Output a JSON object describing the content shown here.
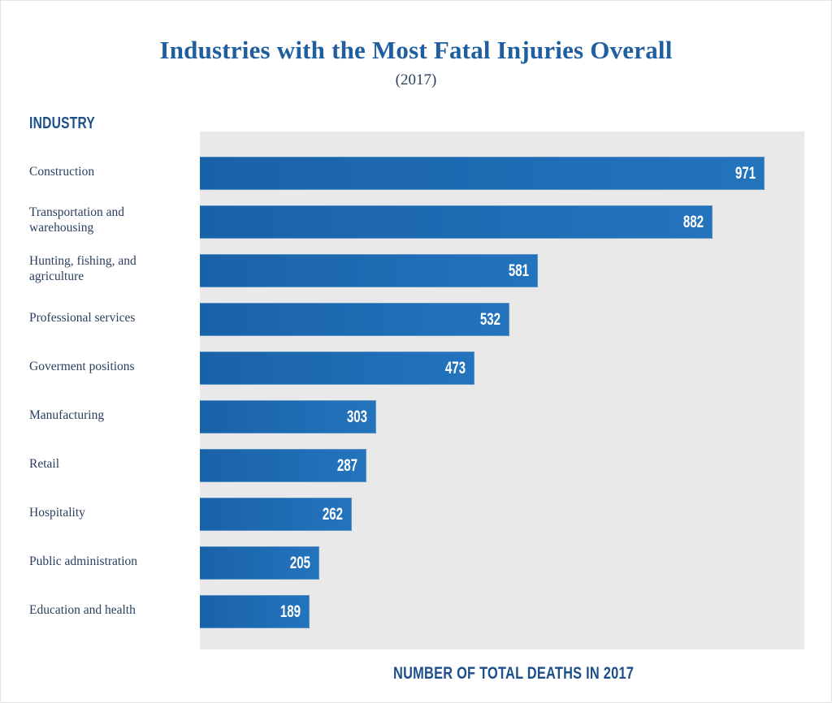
{
  "chart_data": {
    "type": "bar",
    "orientation": "horizontal",
    "title": "Industries with the Most Fatal Injuries Overall",
    "subtitle": "(2017)",
    "ylabel": "INDUSTRY",
    "xlabel": "NUMBER OF TOTAL DEATHS IN 2017",
    "xlim": [
      0,
      1040
    ],
    "grid": false,
    "categories": [
      "Construction",
      "Transportation and warehousing",
      "Hunting, fishing, and agriculture",
      "Professional services",
      "Goverment positions",
      "Manufacturing",
      "Retail",
      "Hospitality",
      "Public administration",
      "Education and health"
    ],
    "category_lines": [
      [
        "Construction"
      ],
      [
        "Transportation and",
        "warehousing"
      ],
      [
        "Hunting, fishing, and",
        "agriculture"
      ],
      [
        "Professional services"
      ],
      [
        "Goverment positions"
      ],
      [
        "Manufacturing"
      ],
      [
        "Retail"
      ],
      [
        "Hospitality"
      ],
      [
        "Public administration"
      ],
      [
        "Education and health"
      ]
    ],
    "values": [
      971,
      882,
      581,
      532,
      473,
      303,
      287,
      262,
      205,
      189
    ],
    "colors": {
      "bar": "#1a62a8",
      "title": "#1f5fa0",
      "axis_label": "#1c4f8c",
      "plot_bg": "#e9e9e9"
    }
  }
}
